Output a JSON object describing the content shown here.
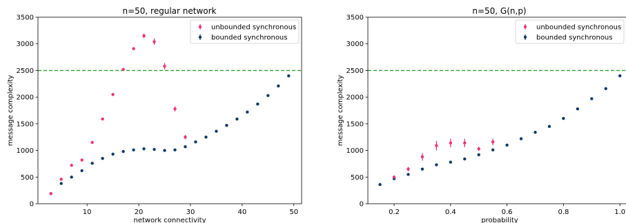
{
  "colors": {
    "unbounded": "#ee3377",
    "bounded": "#0e3a66",
    "reference": "#2ca02c"
  },
  "chart_data": [
    {
      "type": "scatter",
      "title": "n=50, regular network",
      "xlabel": "network connectivity",
      "ylabel": "message complexity",
      "xlim": [
        0.5,
        51.5
      ],
      "ylim": [
        0,
        3500
      ],
      "xticks": [
        10,
        20,
        30,
        40,
        50
      ],
      "yticks": [
        0,
        500,
        1000,
        1500,
        2000,
        2500,
        3000,
        3500
      ],
      "grid": false,
      "legend": "top-right",
      "reference_line": {
        "y": 2500,
        "style": "dashed"
      },
      "series": [
        {
          "name": "unbounded synchronous",
          "color_key": "unbounded",
          "x": [
            3,
            5,
            7,
            9,
            11,
            13,
            15,
            17,
            19,
            21,
            23,
            25,
            27,
            29
          ],
          "y": [
            190,
            460,
            720,
            820,
            1150,
            1590,
            2050,
            2520,
            2910,
            3150,
            3040,
            2580,
            1780,
            1250
          ],
          "err": [
            0,
            10,
            10,
            10,
            10,
            10,
            10,
            10,
            20,
            40,
            60,
            60,
            50,
            40
          ]
        },
        {
          "name": "bounded synchronous",
          "color_key": "bounded",
          "x": [
            3,
            5,
            7,
            9,
            11,
            13,
            15,
            17,
            19,
            21,
            23,
            25,
            27,
            29,
            31,
            33,
            35,
            37,
            39,
            41,
            43,
            45,
            47,
            49
          ],
          "y": [
            190,
            380,
            500,
            620,
            760,
            850,
            930,
            980,
            1010,
            1030,
            1020,
            1000,
            1010,
            1070,
            1160,
            1250,
            1360,
            1470,
            1590,
            1720,
            1870,
            2030,
            2210,
            2400
          ],
          "err": [
            5,
            5,
            5,
            5,
            5,
            5,
            5,
            5,
            5,
            5,
            5,
            5,
            5,
            5,
            5,
            5,
            5,
            5,
            5,
            5,
            5,
            5,
            5,
            5
          ]
        }
      ]
    },
    {
      "type": "scatter",
      "title": "n=50, G(n,p)",
      "xlabel": "probability",
      "ylabel": "message complexity",
      "xlim": [
        0.107,
        1.024
      ],
      "ylim": [
        0,
        3500
      ],
      "xticks": [
        0.2,
        0.4,
        0.6,
        0.8,
        1.0
      ],
      "xtick_labels": [
        "0.2",
        "0.4",
        "0.6",
        "0.8",
        "1.0"
      ],
      "yticks": [
        0,
        500,
        1000,
        1500,
        2000,
        2500,
        3000,
        3500
      ],
      "grid": false,
      "legend": "top-right",
      "reference_line": {
        "y": 2500,
        "style": "dashed"
      },
      "series": [
        {
          "name": "unbounded synchronous",
          "color_key": "unbounded",
          "x": [
            0.2,
            0.25,
            0.3,
            0.35,
            0.4,
            0.45,
            0.5,
            0.55
          ],
          "y": [
            500,
            650,
            880,
            1090,
            1140,
            1140,
            1030,
            1160
          ],
          "err": [
            30,
            40,
            70,
            90,
            80,
            80,
            40,
            60
          ]
        },
        {
          "name": "bounded synchronous",
          "color_key": "bounded",
          "x": [
            0.15,
            0.2,
            0.25,
            0.3,
            0.35,
            0.4,
            0.45,
            0.5,
            0.55,
            0.6,
            0.65,
            0.7,
            0.75,
            0.8,
            0.85,
            0.9,
            0.95,
            1.0
          ],
          "y": [
            360,
            470,
            550,
            650,
            730,
            780,
            840,
            920,
            1010,
            1100,
            1220,
            1340,
            1450,
            1600,
            1780,
            1970,
            2160,
            2400
          ],
          "err": [
            10,
            10,
            15,
            15,
            15,
            10,
            10,
            10,
            10,
            10,
            10,
            10,
            10,
            10,
            10,
            10,
            10,
            10
          ]
        }
      ]
    }
  ]
}
